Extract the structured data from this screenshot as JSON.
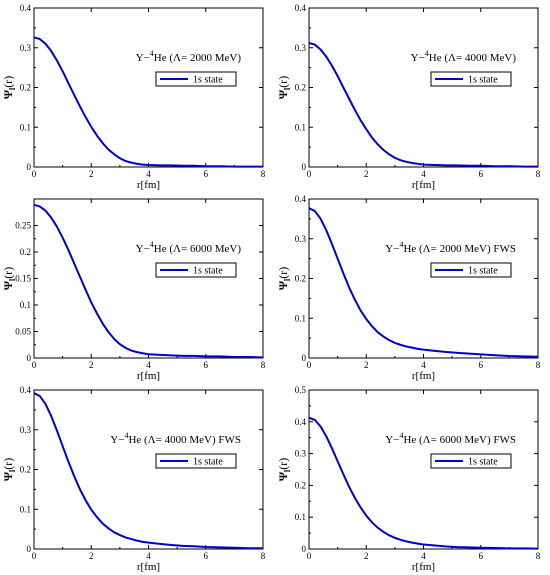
{
  "chart_data": [
    {
      "type": "line",
      "title": "",
      "annotation": "Y−⁴He (Λ= 2000 MeV)",
      "annotation_main": "Y−",
      "annotation_sup": "4",
      "annotation_rest": "He (Λ= 2000 MeV)",
      "xlabel": "r[fm]",
      "ylabel": "Ψ(r)",
      "ylabel_main": "Ψ",
      "ylabel_sub": "l",
      "ylabel_rest": "(r)",
      "xlim": [
        0,
        8
      ],
      "ylim": [
        0,
        0.4
      ],
      "xticks": [
        0,
        2,
        4,
        6,
        8
      ],
      "yticks": [
        0,
        0.1,
        0.2,
        0.3,
        0.4
      ],
      "ytick_labels": [
        "0",
        "0.1",
        "0.2",
        "0.3",
        "0.4"
      ],
      "legend_position": "upper-right",
      "series": [
        {
          "name": "1s state",
          "color": "#0000cc",
          "x": [
            0,
            0.2,
            0.4,
            0.6,
            0.8,
            1.0,
            1.2,
            1.4,
            1.6,
            1.8,
            2.0,
            2.2,
            2.4,
            2.6,
            2.8,
            3.0,
            3.2,
            3.4,
            3.6,
            3.8,
            4.0,
            4.4,
            4.8,
            5.2,
            5.6,
            6.0,
            6.5,
            7.0,
            7.5,
            8.0
          ],
          "y": [
            0.326,
            0.322,
            0.31,
            0.292,
            0.268,
            0.241,
            0.211,
            0.182,
            0.153,
            0.126,
            0.101,
            0.079,
            0.06,
            0.044,
            0.032,
            0.022,
            0.015,
            0.011,
            0.008,
            0.006,
            0.005,
            0.004,
            0.004,
            0.003,
            0.003,
            0.002,
            0.002,
            0.001,
            0.001,
            0.001
          ]
        }
      ]
    },
    {
      "type": "line",
      "title": "",
      "annotation": "Y−⁴He (Λ= 4000 MeV)",
      "annotation_main": "Y−",
      "annotation_sup": "4",
      "annotation_rest": "He (Λ= 4000 MeV)",
      "xlabel": "r[fm]",
      "ylabel": "Ψ(r)",
      "ylabel_main": "Ψ",
      "ylabel_sub": "l",
      "ylabel_rest": "(r)",
      "xlim": [
        0,
        8
      ],
      "ylim": [
        0,
        0.4
      ],
      "xticks": [
        0,
        2,
        4,
        6,
        8
      ],
      "yticks": [
        0,
        0.1,
        0.2,
        0.3,
        0.4
      ],
      "ytick_labels": [
        "0",
        "0.1",
        "0.2",
        "0.3",
        "0.4"
      ],
      "legend_position": "upper-right",
      "series": [
        {
          "name": "1s state",
          "color": "#0000cc",
          "x": [
            0,
            0.2,
            0.4,
            0.6,
            0.8,
            1.0,
            1.2,
            1.4,
            1.6,
            1.8,
            2.0,
            2.2,
            2.4,
            2.6,
            2.8,
            3.0,
            3.2,
            3.4,
            3.6,
            3.8,
            4.0,
            4.4,
            4.8,
            5.2,
            5.6,
            6.0,
            6.5,
            7.0,
            7.5,
            8.0
          ],
          "y": [
            0.312,
            0.308,
            0.296,
            0.278,
            0.255,
            0.229,
            0.2,
            0.172,
            0.144,
            0.118,
            0.095,
            0.074,
            0.057,
            0.043,
            0.032,
            0.023,
            0.017,
            0.013,
            0.01,
            0.008,
            0.006,
            0.005,
            0.004,
            0.004,
            0.003,
            0.003,
            0.002,
            0.002,
            0.001,
            0.001
          ]
        }
      ]
    },
    {
      "type": "line",
      "title": "",
      "annotation": "Y−⁴He (Λ= 6000 MeV)",
      "annotation_main": "Y−",
      "annotation_sup": "4",
      "annotation_rest": "He (Λ= 6000 MeV)",
      "xlabel": "r[fm]",
      "ylabel": "Ψ(r)",
      "ylabel_main": "Ψ",
      "ylabel_sub": "l",
      "ylabel_rest": "(r)",
      "xlim": [
        0,
        8
      ],
      "ylim": [
        0,
        0.3
      ],
      "xticks": [
        0,
        2,
        4,
        6,
        8
      ],
      "yticks": [
        0,
        0.05,
        0.1,
        0.15,
        0.2,
        0.25
      ],
      "ytick_labels": [
        "0",
        "0.05",
        "0.1",
        "0.15",
        "0.2",
        "0.25"
      ],
      "legend_position": "upper-right",
      "series": [
        {
          "name": "1s state",
          "color": "#0000cc",
          "x": [
            0,
            0.2,
            0.4,
            0.6,
            0.8,
            1.0,
            1.2,
            1.4,
            1.6,
            1.8,
            2.0,
            2.2,
            2.4,
            2.6,
            2.8,
            3.0,
            3.2,
            3.4,
            3.6,
            3.8,
            4.0,
            4.4,
            4.8,
            5.2,
            5.6,
            6.0,
            6.5,
            7.0,
            7.5,
            8.0
          ],
          "y": [
            0.289,
            0.286,
            0.278,
            0.265,
            0.248,
            0.227,
            0.204,
            0.179,
            0.154,
            0.129,
            0.105,
            0.084,
            0.065,
            0.049,
            0.036,
            0.026,
            0.019,
            0.014,
            0.011,
            0.009,
            0.007,
            0.006,
            0.005,
            0.004,
            0.004,
            0.003,
            0.003,
            0.002,
            0.002,
            0.001
          ]
        }
      ]
    },
    {
      "type": "line",
      "title": "",
      "annotation": "Y−⁴He (Λ= 2000 MeV) FWS",
      "annotation_main": "Y−",
      "annotation_sup": "4",
      "annotation_rest": "He (Λ= 2000 MeV) FWS",
      "xlabel": "r[fm]",
      "ylabel": "Ψ(r)",
      "ylabel_main": "Ψ",
      "ylabel_sub": "l",
      "ylabel_rest": "(r)",
      "xlim": [
        0,
        8
      ],
      "ylim": [
        0,
        0.4
      ],
      "xticks": [
        0,
        2,
        4,
        6,
        8
      ],
      "yticks": [
        0,
        0.1,
        0.2,
        0.3,
        0.4
      ],
      "ytick_labels": [
        "0",
        "0.1",
        "0.2",
        "0.3",
        "0.4"
      ],
      "legend_position": "upper-right",
      "series": [
        {
          "name": "1s state",
          "color": "#0000cc",
          "x": [
            0,
            0.2,
            0.4,
            0.6,
            0.8,
            1.0,
            1.2,
            1.4,
            1.6,
            1.8,
            2.0,
            2.2,
            2.4,
            2.6,
            2.8,
            3.0,
            3.2,
            3.4,
            3.6,
            3.8,
            4.0,
            4.4,
            4.8,
            5.2,
            5.6,
            6.0,
            6.5,
            7.0,
            7.5,
            8.0
          ],
          "y": [
            0.377,
            0.37,
            0.351,
            0.322,
            0.287,
            0.25,
            0.213,
            0.178,
            0.147,
            0.12,
            0.098,
            0.08,
            0.065,
            0.054,
            0.045,
            0.038,
            0.033,
            0.029,
            0.026,
            0.023,
            0.021,
            0.018,
            0.015,
            0.013,
            0.011,
            0.009,
            0.007,
            0.005,
            0.004,
            0.003
          ]
        }
      ]
    },
    {
      "type": "line",
      "title": "",
      "annotation": "Y−⁴He (Λ= 4000 MeV) FWS",
      "annotation_main": "Y−",
      "annotation_sup": "4",
      "annotation_rest": "He (Λ= 4000 MeV) FWS",
      "xlabel": "r[fm]",
      "ylabel": "Ψ(r)",
      "ylabel_main": "Ψ",
      "ylabel_sub": "l",
      "ylabel_rest": "(r)",
      "xlim": [
        0,
        8
      ],
      "ylim": [
        0,
        0.4
      ],
      "xticks": [
        0,
        2,
        4,
        6,
        8
      ],
      "yticks": [
        0,
        0.1,
        0.2,
        0.3,
        0.4
      ],
      "ytick_labels": [
        "0",
        "0.1",
        "0.2",
        "0.3",
        "0.4"
      ],
      "legend_position": "upper-right",
      "series": [
        {
          "name": "1s state",
          "color": "#0000cc",
          "x": [
            0,
            0.2,
            0.4,
            0.6,
            0.8,
            1.0,
            1.2,
            1.4,
            1.6,
            1.8,
            2.0,
            2.2,
            2.4,
            2.6,
            2.8,
            3.0,
            3.2,
            3.4,
            3.6,
            3.8,
            4.0,
            4.4,
            4.8,
            5.2,
            5.6,
            6.0,
            6.5,
            7.0,
            7.5,
            8.0
          ],
          "y": [
            0.392,
            0.385,
            0.365,
            0.335,
            0.298,
            0.259,
            0.22,
            0.184,
            0.151,
            0.123,
            0.099,
            0.08,
            0.064,
            0.052,
            0.042,
            0.035,
            0.029,
            0.025,
            0.021,
            0.018,
            0.016,
            0.013,
            0.01,
            0.008,
            0.007,
            0.005,
            0.004,
            0.003,
            0.002,
            0.002
          ]
        }
      ]
    },
    {
      "type": "line",
      "title": "",
      "annotation": "Y−⁴He (Λ= 6000 MeV) FWS",
      "annotation_main": "Y−",
      "annotation_sup": "4",
      "annotation_rest": "He (Λ= 6000 MeV) FWS",
      "xlabel": "r[fm]",
      "ylabel": "Ψ(r)",
      "ylabel_main": "Ψ",
      "ylabel_sub": "l",
      "ylabel_rest": "(r)",
      "xlim": [
        0,
        8
      ],
      "ylim": [
        0,
        0.5
      ],
      "xticks": [
        0,
        2,
        4,
        6,
        8
      ],
      "yticks": [
        0,
        0.1,
        0.2,
        0.3,
        0.4,
        0.5
      ],
      "ytick_labels": [
        "0",
        "0.1",
        "0.2",
        "0.3",
        "0.4",
        "0.5"
      ],
      "legend_position": "upper-right",
      "series": [
        {
          "name": "1s state",
          "color": "#0000cc",
          "x": [
            0,
            0.2,
            0.4,
            0.6,
            0.8,
            1.0,
            1.2,
            1.4,
            1.6,
            1.8,
            2.0,
            2.2,
            2.4,
            2.6,
            2.8,
            3.0,
            3.2,
            3.4,
            3.6,
            3.8,
            4.0,
            4.4,
            4.8,
            5.2,
            5.6,
            6.0,
            6.5,
            7.0,
            7.5,
            8.0
          ],
          "y": [
            0.413,
            0.406,
            0.386,
            0.355,
            0.317,
            0.276,
            0.235,
            0.196,
            0.161,
            0.131,
            0.105,
            0.084,
            0.067,
            0.054,
            0.043,
            0.035,
            0.029,
            0.024,
            0.02,
            0.017,
            0.014,
            0.011,
            0.008,
            0.006,
            0.005,
            0.004,
            0.003,
            0.002,
            0.002,
            0.001
          ]
        }
      ]
    }
  ]
}
